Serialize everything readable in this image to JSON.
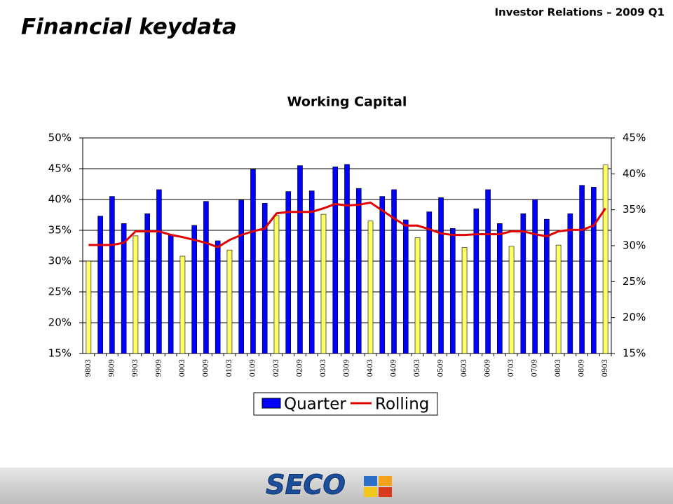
{
  "header": {
    "title": "Financial keydata",
    "subtitle": "Investor Relations – 2009 Q1"
  },
  "chart_data": {
    "type": "bar",
    "title": "Working Capital",
    "categories": [
      "9803",
      null,
      "9809",
      null,
      "9903",
      null,
      "9909",
      null,
      "0003",
      null,
      "0009",
      null,
      "0103",
      null,
      "0109",
      null,
      "0203",
      null,
      "0209",
      null,
      "0303",
      null,
      "0309",
      null,
      "0403",
      null,
      "0409",
      null,
      "0503",
      null,
      "0509",
      null,
      "0603",
      null,
      "0609",
      null,
      "0703",
      null,
      "0709",
      null,
      "0803",
      null,
      "0809",
      null,
      "0903"
    ],
    "series": [
      {
        "name": "Quarter",
        "color": "#0000ff",
        "colors": [
          "#ffff66",
          "#0000ff",
          "#0000ff",
          "#0000ff",
          "#ffff66",
          "#0000ff",
          "#0000ff",
          "#0000ff",
          "#ffff66",
          "#0000ff",
          "#0000ff",
          "#0000ff",
          "#ffff66",
          "#0000ff",
          "#0000ff",
          "#0000ff",
          "#ffff66",
          "#0000ff",
          "#0000ff",
          "#0000ff",
          "#ffff66",
          "#0000ff",
          "#0000ff",
          "#0000ff",
          "#ffff66",
          "#0000ff",
          "#0000ff",
          "#0000ff",
          "#ffff66",
          "#0000ff",
          "#0000ff",
          "#0000ff",
          "#ffff66",
          "#0000ff",
          "#0000ff",
          "#0000ff",
          "#ffff66",
          "#0000ff",
          "#0000ff",
          "#0000ff",
          "#ffff66",
          "#0000ff",
          "#0000ff",
          "#0000ff",
          "#ffff66"
        ],
        "values": [
          30.0,
          37.3,
          40.5,
          36.1,
          34.1,
          37.7,
          41.6,
          34.3,
          30.8,
          35.8,
          39.7,
          33.3,
          31.8,
          39.9,
          44.9,
          39.4,
          37.4,
          41.3,
          45.5,
          41.4,
          37.6,
          45.3,
          45.7,
          41.8,
          36.5,
          40.5,
          41.6,
          36.7,
          33.8,
          38.0,
          40.3,
          35.3,
          32.2,
          38.5,
          41.6,
          36.1,
          32.4,
          37.7,
          40.0,
          36.8,
          32.6,
          37.7,
          42.3,
          42.0,
          45.6
        ]
      },
      {
        "name": "Rolling",
        "color": "#e00000",
        "axis": "y2",
        "values": [
          30.1,
          30.1,
          30.1,
          30.4,
          32.0,
          32.0,
          32.0,
          31.5,
          31.2,
          30.8,
          30.4,
          29.8,
          30.8,
          31.5,
          32.0,
          32.4,
          34.5,
          34.7,
          34.7,
          34.7,
          35.2,
          35.8,
          35.6,
          35.7,
          36.0,
          34.9,
          33.8,
          32.8,
          32.8,
          32.3,
          31.7,
          31.5,
          31.5,
          31.6,
          31.6,
          31.6,
          32.0,
          32.0,
          31.6,
          31.3,
          32.0,
          32.2,
          32.2,
          32.8,
          35.2
        ]
      }
    ],
    "ylim": [
      15,
      50
    ],
    "yticks": [
      {
        "value": 15,
        "label": "15%"
      },
      {
        "value": 20,
        "label": "20%"
      },
      {
        "value": 25,
        "label": "25%"
      },
      {
        "value": 30,
        "label": "30%"
      },
      {
        "value": 35,
        "label": "35%"
      },
      {
        "value": 40,
        "label": "40%"
      },
      {
        "value": 45,
        "label": "45%"
      },
      {
        "value": 50,
        "label": "50%"
      }
    ],
    "y2lim": [
      15,
      45
    ],
    "y2ticks": [
      {
        "value": 15,
        "label": "15%"
      },
      {
        "value": 20,
        "label": "20%"
      },
      {
        "value": 25,
        "label": "25%"
      },
      {
        "value": 30,
        "label": "30%"
      },
      {
        "value": 35,
        "label": "35%"
      },
      {
        "value": 40,
        "label": "40%"
      },
      {
        "value": 45,
        "label": "45%"
      }
    ],
    "grid": true
  },
  "footer": {
    "logo": "SECO"
  }
}
